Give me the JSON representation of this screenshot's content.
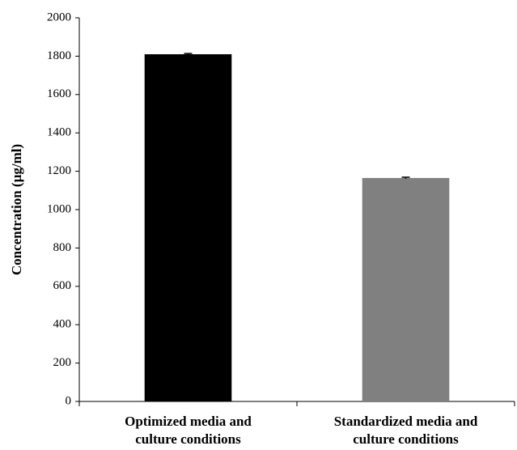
{
  "chart_data": {
    "type": "bar",
    "y_label": "Concentration (µg/ml)",
    "categories": [
      "Optimized media and culture conditions",
      "Standardized media and culture conditions"
    ],
    "values": [
      1810,
      1165
    ],
    "errors": [
      4,
      4
    ],
    "colors": [
      "#000000",
      "#808080"
    ],
    "ylim": [
      0,
      2000
    ],
    "yticks": [
      0,
      200,
      400,
      600,
      800,
      1000,
      1200,
      1400,
      1600,
      1800,
      2000
    ],
    "grid": false
  }
}
